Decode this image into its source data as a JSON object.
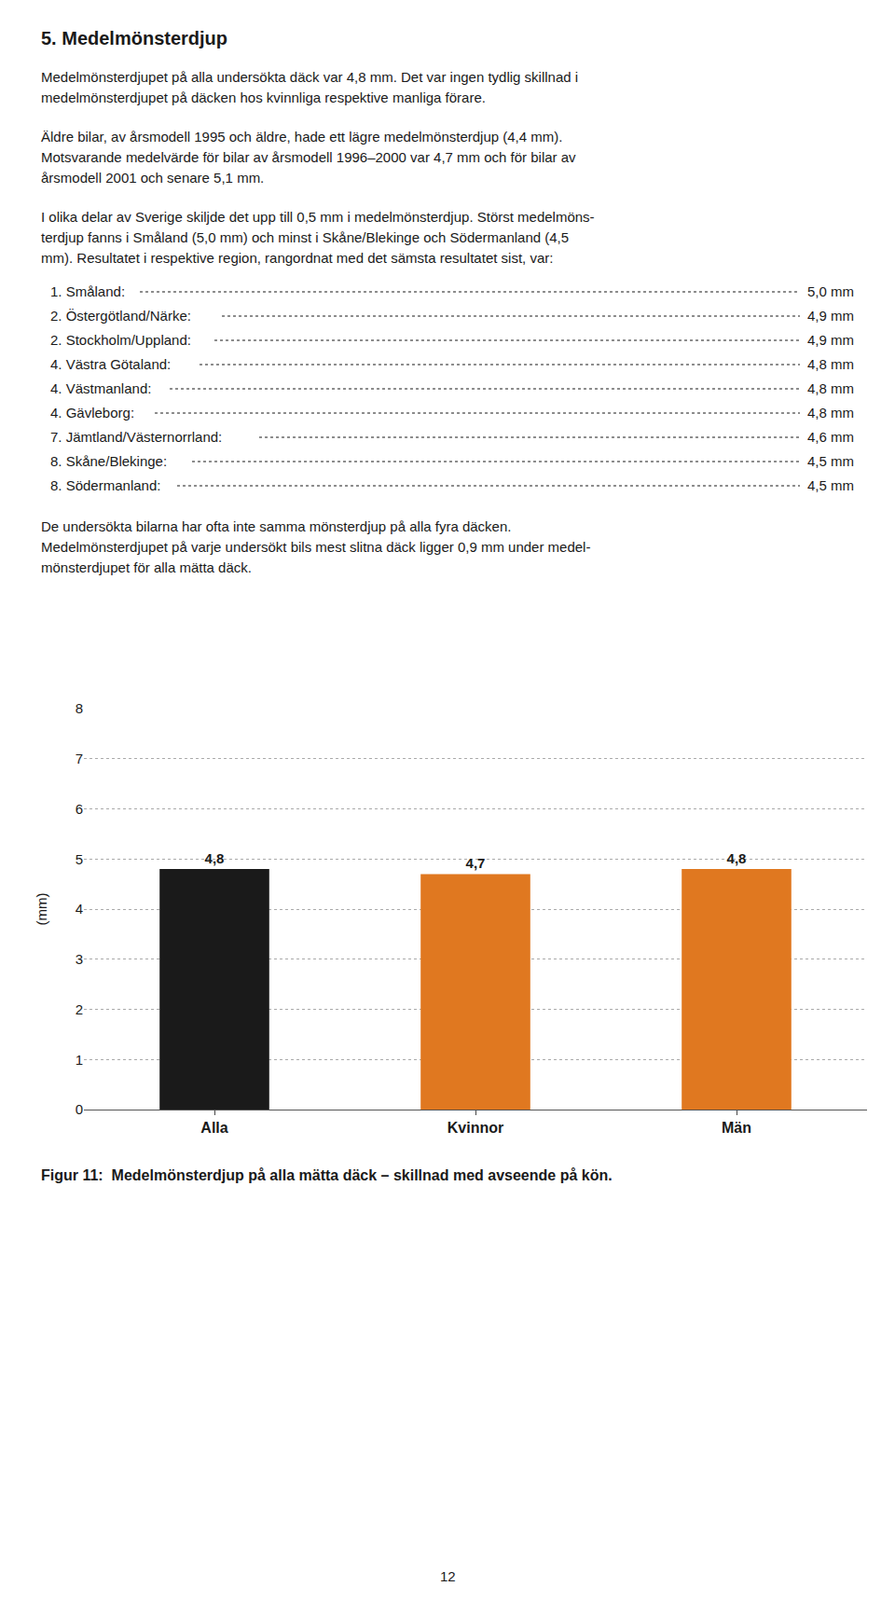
{
  "chart_data": {
    "type": "bar",
    "title": "Figur 11:  Medelmönsterdjup på alla mätta däck – skillnad med avseende på kön.",
    "annotations": [
      "5. Medelmönsterdjup",
      "Medelmönsterdjupet på alla undersökta däck var 4,8 mm. Det var ingen tydlig skillnad i",
      "medelmönsterdjupet på däcken hos kvinnliga respektive manliga förare.",
      "Äldre bilar, av årsmodell 1995 och äldre, hade ett lägre medelmönsterdjup (4,4 mm).",
      "Motsvarande medelvärde för bilar av årsmodell 1996–2000 var 4,7 mm och för bilar av",
      "årsmodell 2001 och senare 5,1 mm.",
      "I olika delar av Sverige skiljde det upp till 0,5 mm i medelmönsterdjup. Störst medelmöns-",
      "terdjup fanns i Småland (5,0 mm) och minst i Skåne/Blekinge och Södermanland (4,5",
      "mm). Resultatet i respektive region, rangordnat med det sämsta resultatet sist, var:",
      [
        "1. Småland:",
        "5,0 mm"
      ],
      [
        "2. Östergötland/Närke:",
        "4,9 mm"
      ],
      [
        "2. Stockholm/Uppland:",
        "4,9 mm"
      ],
      [
        "4. Västra Götaland:",
        "4,8 mm"
      ],
      [
        "4. Västmanland:",
        "4,8 mm"
      ],
      [
        "4. Gävleborg:",
        "4,8 mm"
      ],
      [
        "7. Jämtland/Västernorrland:",
        "4,6 mm"
      ],
      [
        "8. Skåne/Blekinge:",
        "4,5 mm"
      ],
      [
        "8. Södermanland:",
        "4,5 mm"
      ],
      "De undersökta bilarna har ofta inte samma mönsterdjup på alla fyra däcken.",
      "Medelmönsterdjupet på varje undersökt bils mest slitna däck ligger 0,9 mm under medel-",
      "mönsterdjupet för alla mätta däck.",
      "12"
    ],
    "categories": [
      "Alla",
      "Kvinnor",
      "Män"
    ],
    "values": [
      4.8,
      4.7,
      4.8
    ],
    "value_labels": [
      "4,8",
      "4,7",
      "4,8"
    ],
    "data_labels": true,
    "colors": [
      "#1a1a1a",
      "#e07820",
      "#e07820"
    ],
    "ylabel": "(mm)",
    "ylim": [
      0,
      8
    ],
    "yticks": [
      0,
      1,
      2,
      3,
      4,
      5,
      6,
      7,
      8
    ],
    "grid": true
  }
}
